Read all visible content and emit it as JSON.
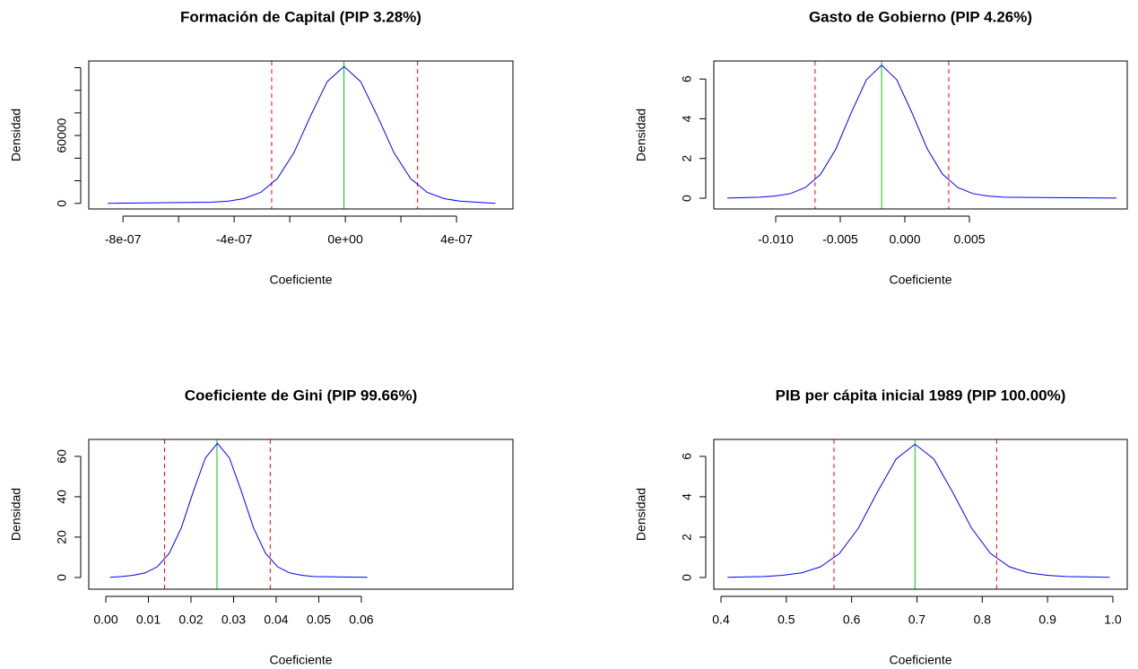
{
  "chart_data": [
    {
      "type": "line",
      "title": "Formación de Capital (PIP 3.28%)",
      "xlabel": "Coeficiente",
      "ylabel": "Densidad",
      "color": "#0000ff",
      "x": [
        -8.55e-07,
        -4.85e-07,
        -4.25e-07,
        -3.65e-07,
        -3.05e-07,
        -2.45e-07,
        -1.85e-07,
        -1.25e-07,
        -6.5e-08,
        -5e-09,
        5.5e-08,
        1.15e-07,
        1.75e-07,
        2.35e-07,
        2.95e-07,
        3.55e-07,
        4.15e-07,
        4.75e-07,
        5.4e-07
      ],
      "values": [
        100,
        1000,
        1900,
        4200,
        9700,
        21800,
        44800,
        77400,
        107700,
        121000,
        107700,
        77400,
        44800,
        21800,
        9700,
        4200,
        1900,
        1000,
        100
      ],
      "reference_lines": [
        {
          "x": -2.65e-07,
          "color": "#ff0000",
          "dashed": true
        },
        {
          "x": 2.6e-07,
          "color": "#ff0000",
          "dashed": true
        },
        {
          "x": -5e-09,
          "color": "#00cd00",
          "dashed": false
        }
      ],
      "xlim": [
        -9.23e-07,
        6.03e-07
      ],
      "ylim": [
        -4900,
        125900
      ],
      "xticks": [
        {
          "value": -8e-07,
          "label": "-8e-07"
        },
        {
          "value": -6e-07,
          "label": null
        },
        {
          "value": -4e-07,
          "label": "-4e-07"
        },
        {
          "value": -2e-07,
          "label": null
        },
        {
          "value": 0,
          "label": "0e+00"
        },
        {
          "value": 2e-07,
          "label": null
        },
        {
          "value": 4e-07,
          "label": "4e-07"
        }
      ],
      "yticks": [
        0,
        {
          "value": 20000,
          "label": null
        },
        {
          "value": 40000,
          "label": null
        },
        60000,
        {
          "value": 80000,
          "label": null
        },
        {
          "value": 100000,
          "label": null
        },
        {
          "value": 120000,
          "label": null
        }
      ]
    },
    {
      "type": "line",
      "title": "Gasto de Gobierno (PIP 4.26%)",
      "xlabel": "Coeficiente",
      "ylabel": "Densidad",
      "color": "#0000ff",
      "x": [
        -0.01375,
        -0.01124,
        -0.01006,
        -0.00888,
        -0.0077,
        -0.00652,
        -0.00534,
        -0.00416,
        -0.00298,
        -0.0018,
        -0.00062,
        0.00056,
        0.00174,
        0.00292,
        0.0041,
        0.00528,
        0.00646,
        0.00764,
        0.01639
      ],
      "values": [
        0.01,
        0.05,
        0.11,
        0.23,
        0.54,
        1.21,
        2.48,
        4.29,
        5.96,
        6.7,
        5.96,
        4.29,
        2.48,
        1.21,
        0.54,
        0.23,
        0.11,
        0.05,
        0.01
      ],
      "reference_lines": [
        {
          "x": -0.00695,
          "color": "#ff0000",
          "dashed": true
        },
        {
          "x": 0.0034,
          "color": "#ff0000",
          "dashed": true
        },
        {
          "x": -0.0018,
          "color": "#00cd00",
          "dashed": false
        }
      ],
      "xlim": [
        -0.01479,
        0.01722
      ],
      "ylim": [
        -0.54,
        6.91
      ],
      "xticks": [
        {
          "value": -0.01,
          "label": "-0.010"
        },
        -0.005,
        {
          "value": 0,
          "label": "0.000"
        },
        0.005
      ],
      "yticks": [
        0,
        2,
        4,
        6
      ]
    },
    {
      "type": "line",
      "title": "Coeficiente de Gini (PIP 99.66%)",
      "xlabel": "Coeficiente",
      "ylabel": "Densidad",
      "color": "#0000ff",
      "x": [
        0.001,
        0.0036,
        0.00643,
        0.00925,
        0.01208,
        0.0149,
        0.01773,
        0.02055,
        0.02338,
        0.0262,
        0.02903,
        0.03185,
        0.03468,
        0.0375,
        0.04033,
        0.04315,
        0.04598,
        0.0488,
        0.0614
      ],
      "values": [
        0.07,
        0.5,
        1.1,
        2.3,
        5.3,
        12.0,
        24.6,
        42.6,
        59.2,
        66.5,
        59.2,
        42.6,
        24.6,
        12.0,
        5.3,
        2.3,
        1.1,
        0.5,
        0.07
      ],
      "reference_lines": [
        {
          "x": 0.0138,
          "color": "#ff0000",
          "dashed": true
        },
        {
          "x": 0.0386,
          "color": "#ff0000",
          "dashed": true
        },
        {
          "x": 0.0261,
          "color": "#00cd00",
          "dashed": false
        }
      ],
      "xlim": [
        -0.004,
        0.0956
      ],
      "ylim": [
        -5.8,
        68.4
      ],
      "xticks": [
        {
          "value": 0,
          "label": "0.00"
        },
        0.01,
        0.02,
        0.03,
        0.04,
        0.05,
        0.06
      ],
      "yticks": [
        0,
        20,
        40,
        60
      ]
    },
    {
      "type": "line",
      "title": "PIB per cápita inicial 1989 (PIP 100.00%)",
      "xlabel": "Coeficiente",
      "ylabel": "Densidad",
      "color": "#0000ff",
      "x": [
        0.41,
        0.4658,
        0.4947,
        0.5236,
        0.5525,
        0.5814,
        0.6103,
        0.6392,
        0.6681,
        0.697,
        0.7259,
        0.7548,
        0.7837,
        0.8126,
        0.8415,
        0.8704,
        0.8993,
        0.9282,
        0.995
      ],
      "values": [
        0.01,
        0.05,
        0.11,
        0.23,
        0.53,
        1.19,
        2.44,
        4.22,
        5.87,
        6.6,
        5.87,
        4.22,
        2.44,
        1.19,
        0.53,
        0.23,
        0.11,
        0.05,
        0.01
      ],
      "reference_lines": [
        {
          "x": 0.573,
          "color": "#ff0000",
          "dashed": true
        },
        {
          "x": 0.822,
          "color": "#ff0000",
          "dashed": true
        },
        {
          "x": 0.697,
          "color": "#00cd00",
          "dashed": false
        }
      ],
      "xlim": [
        0.389,
        1.022
      ],
      "ylim": [
        -0.58,
        6.84
      ],
      "xticks": [
        0.4,
        0.5,
        0.6,
        0.7,
        0.8,
        0.9,
        {
          "value": 1.0,
          "label": "1.0"
        }
      ],
      "yticks": [
        0,
        2,
        4,
        6
      ]
    }
  ]
}
